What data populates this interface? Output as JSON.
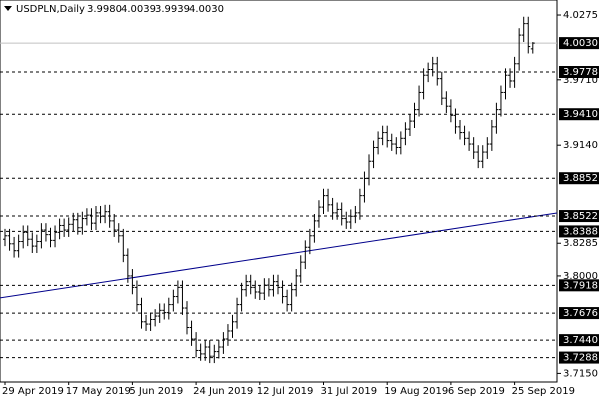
{
  "chart_data": {
    "type": "ohlc",
    "quote": {
      "symbol": "USDPLN,Daily",
      "open": "3.9980",
      "high": "4.0039",
      "low": "3.9939",
      "close": "4.0030"
    },
    "color": "#000000",
    "categories": [
      "29 Apr 2019",
      null,
      null,
      null,
      null,
      null,
      null,
      null,
      null,
      null,
      null,
      null,
      null,
      null,
      "17 May 2019",
      null,
      null,
      null,
      null,
      null,
      null,
      null,
      null,
      null,
      null,
      null,
      null,
      null,
      "5 Jun 2019",
      null,
      null,
      null,
      null,
      null,
      null,
      null,
      null,
      null,
      null,
      null,
      null,
      null,
      "24 Jun 2019",
      null,
      null,
      null,
      null,
      null,
      null,
      null,
      null,
      null,
      null,
      null,
      null,
      null,
      "12 Jul 2019",
      null,
      null,
      null,
      null,
      null,
      null,
      null,
      null,
      null,
      null,
      null,
      null,
      null,
      "31 Jul 2019",
      null,
      null,
      null,
      null,
      null,
      null,
      null,
      null,
      null,
      null,
      null,
      null,
      null,
      "19 Aug 2019",
      null,
      null,
      null,
      null,
      null,
      null,
      null,
      null,
      null,
      null,
      null,
      null,
      null,
      "6 Sep 2019",
      null,
      null,
      null,
      null,
      null,
      null,
      null,
      null,
      null,
      null,
      null,
      null,
      null,
      "25 Sep 2019",
      null,
      null,
      null,
      null
    ],
    "open": [
      3.832,
      3.835,
      3.828,
      3.822,
      3.83,
      3.838,
      3.832,
      3.826,
      3.83,
      3.84,
      3.836,
      3.831,
      3.838,
      3.844,
      3.84,
      3.845,
      3.849,
      3.842,
      3.85,
      3.853,
      3.846,
      3.855,
      3.852,
      3.856,
      3.848,
      3.84,
      3.835,
      3.818,
      3.8,
      3.79,
      3.775,
      3.76,
      3.758,
      3.762,
      3.765,
      3.77,
      3.768,
      3.775,
      3.782,
      3.79,
      3.772,
      3.755,
      3.745,
      3.735,
      3.732,
      3.738,
      3.73,
      3.734,
      3.738,
      3.745,
      3.752,
      3.76,
      3.775,
      3.788,
      3.795,
      3.79,
      3.786,
      3.785,
      3.792,
      3.788,
      3.795,
      3.79,
      3.782,
      3.775,
      3.788,
      3.8,
      3.812,
      3.825,
      3.835,
      3.848,
      3.86,
      3.87,
      3.862,
      3.855,
      3.858,
      3.85,
      3.847,
      3.852,
      3.855,
      3.87,
      3.885,
      3.9,
      3.912,
      3.92,
      3.925,
      3.918,
      3.915,
      3.912,
      3.92,
      3.928,
      3.935,
      3.945,
      3.96,
      3.975,
      3.98,
      3.985,
      3.972,
      3.955,
      3.948,
      3.94,
      3.93,
      3.925,
      3.92,
      3.915,
      3.908,
      3.9,
      3.908,
      3.915,
      3.93,
      3.945,
      3.96,
      3.975,
      3.97,
      3.985,
      4.01,
      4.02,
      3.998
    ],
    "high": [
      3.841,
      3.841,
      3.834,
      3.836,
      3.844,
      3.844,
      3.838,
      3.836,
      3.846,
      3.846,
      3.842,
      3.844,
      3.85,
      3.85,
      3.851,
      3.855,
      3.855,
      3.856,
      3.859,
      3.859,
      3.861,
      3.861,
      3.862,
      3.862,
      3.854,
      3.846,
      3.841,
      3.824,
      3.806,
      3.796,
      3.781,
      3.766,
      3.768,
      3.771,
      3.776,
      3.776,
      3.781,
      3.788,
      3.796,
      3.796,
      3.778,
      3.761,
      3.751,
      3.741,
      3.744,
      3.744,
      3.74,
      3.744,
      3.751,
      3.758,
      3.766,
      3.781,
      3.794,
      3.801,
      3.801,
      3.796,
      3.792,
      3.798,
      3.798,
      3.801,
      3.801,
      3.796,
      3.788,
      3.794,
      3.806,
      3.818,
      3.831,
      3.841,
      3.854,
      3.866,
      3.876,
      3.876,
      3.868,
      3.864,
      3.864,
      3.856,
      3.858,
      3.861,
      3.876,
      3.891,
      3.906,
      3.918,
      3.926,
      3.931,
      3.931,
      3.924,
      3.921,
      3.926,
      3.934,
      3.941,
      3.951,
      3.966,
      3.981,
      3.986,
      3.991,
      3.991,
      3.978,
      3.961,
      3.954,
      3.946,
      3.936,
      3.931,
      3.926,
      3.921,
      3.914,
      3.914,
      3.921,
      3.936,
      3.951,
      3.966,
      3.981,
      3.981,
      3.991,
      4.016,
      4.026,
      4.026,
      4.0039
    ],
    "low": [
      3.826,
      3.822,
      3.816,
      3.816,
      3.824,
      3.826,
      3.82,
      3.82,
      3.824,
      3.83,
      3.825,
      3.825,
      3.832,
      3.834,
      3.834,
      3.839,
      3.836,
      3.836,
      3.844,
      3.84,
      3.84,
      3.846,
      3.846,
      3.842,
      3.834,
      3.829,
      3.812,
      3.794,
      3.784,
      3.769,
      3.754,
      3.752,
      3.752,
      3.756,
      3.759,
      3.762,
      3.762,
      3.769,
      3.776,
      3.766,
      3.749,
      3.739,
      3.729,
      3.726,
      3.726,
      3.724,
      3.724,
      3.728,
      3.732,
      3.739,
      3.746,
      3.754,
      3.769,
      3.782,
      3.784,
      3.78,
      3.779,
      3.779,
      3.782,
      3.782,
      3.784,
      3.776,
      3.769,
      3.769,
      3.782,
      3.794,
      3.806,
      3.819,
      3.829,
      3.842,
      3.854,
      3.856,
      3.849,
      3.849,
      3.844,
      3.841,
      3.841,
      3.846,
      3.849,
      3.864,
      3.879,
      3.894,
      3.906,
      3.914,
      3.912,
      3.909,
      3.906,
      3.906,
      3.914,
      3.922,
      3.929,
      3.939,
      3.954,
      3.969,
      3.974,
      3.966,
      3.949,
      3.942,
      3.934,
      3.924,
      3.919,
      3.914,
      3.909,
      3.902,
      3.894,
      3.894,
      3.902,
      3.909,
      3.924,
      3.939,
      3.954,
      3.964,
      3.964,
      3.979,
      4.004,
      3.994,
      3.9939
    ],
    "close": [
      3.835,
      3.828,
      3.822,
      3.83,
      3.838,
      3.832,
      3.826,
      3.83,
      3.84,
      3.836,
      3.831,
      3.838,
      3.844,
      3.84,
      3.845,
      3.849,
      3.842,
      3.85,
      3.853,
      3.846,
      3.855,
      3.852,
      3.856,
      3.848,
      3.84,
      3.835,
      3.818,
      3.8,
      3.79,
      3.775,
      3.76,
      3.758,
      3.762,
      3.765,
      3.77,
      3.768,
      3.775,
      3.782,
      3.79,
      3.772,
      3.755,
      3.745,
      3.735,
      3.732,
      3.738,
      3.73,
      3.734,
      3.738,
      3.745,
      3.752,
      3.76,
      3.775,
      3.788,
      3.795,
      3.79,
      3.786,
      3.785,
      3.792,
      3.788,
      3.795,
      3.79,
      3.782,
      3.775,
      3.788,
      3.8,
      3.812,
      3.825,
      3.835,
      3.848,
      3.86,
      3.87,
      3.862,
      3.855,
      3.858,
      3.85,
      3.847,
      3.852,
      3.855,
      3.87,
      3.885,
      3.9,
      3.912,
      3.92,
      3.925,
      3.918,
      3.915,
      3.912,
      3.92,
      3.928,
      3.935,
      3.945,
      3.96,
      3.975,
      3.98,
      3.985,
      3.972,
      3.955,
      3.948,
      3.94,
      3.93,
      3.925,
      3.92,
      3.915,
      3.908,
      3.9,
      3.908,
      3.915,
      3.93,
      3.945,
      3.96,
      3.975,
      3.97,
      3.985,
      4.01,
      4.02,
      4.0,
      4.003
    ],
    "ylim": [
      3.7075,
      4.0406
    ],
    "yticks": [
      4.0275,
      {
        "value": 3.971,
        "label": "3.9710"
      },
      {
        "value": 3.914,
        "label": "3.9140"
      },
      3.8285,
      {
        "value": 3.8,
        "label": "3.8000"
      },
      {
        "value": 3.715,
        "label": "3.7150"
      }
    ],
    "levels": [
      3.9778,
      {
        "value": 3.941,
        "label": "3.9410"
      },
      3.8852,
      3.8522,
      3.8388,
      3.7918,
      3.7676,
      {
        "value": 3.744,
        "label": "3.7440"
      },
      3.7288
    ],
    "price_line_color": "#c0c0c0",
    "trendline": {
      "start": 3.7808,
      "end": 3.8549,
      "color": "#00008b"
    }
  }
}
